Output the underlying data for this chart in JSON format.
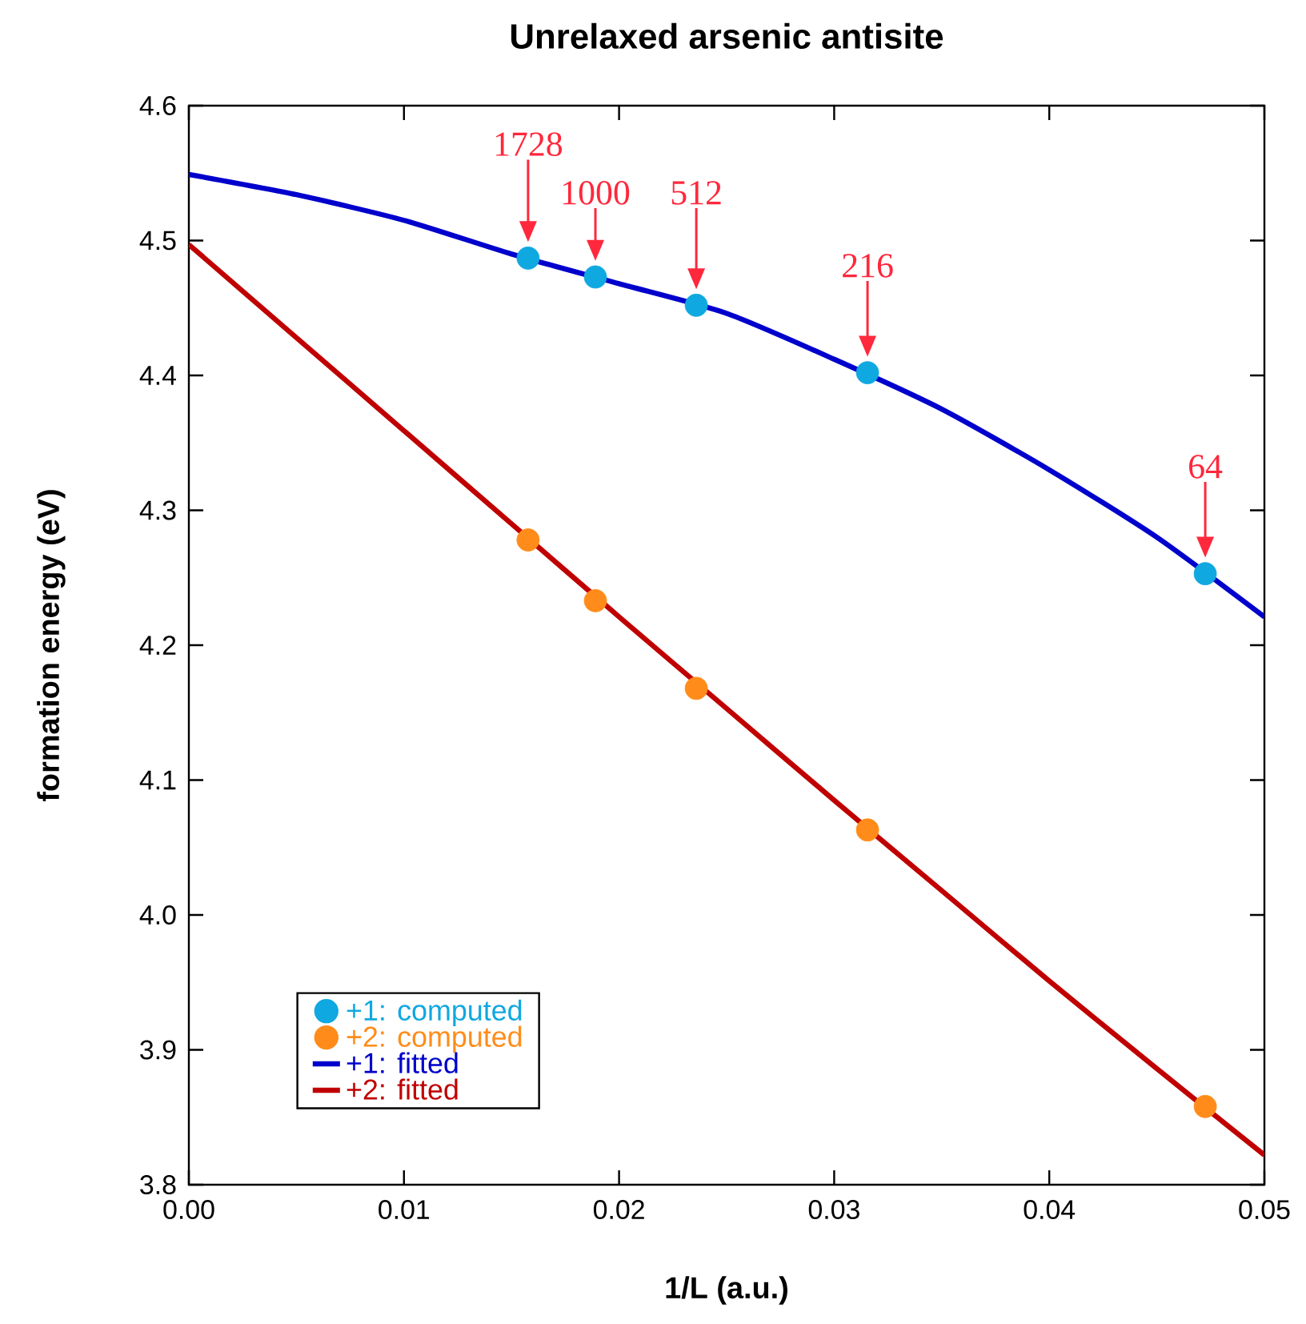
{
  "chart_data": {
    "type": "line",
    "title": "Unrelaxed arsenic antisite",
    "xlabel": "1/L (a.u.)",
    "ylabel": "formation energy (eV)",
    "xlim": [
      0,
      0.05
    ],
    "ylim": [
      3.8,
      4.6
    ],
    "xticks": [
      {
        "value": 0,
        "label": "0.00"
      },
      {
        "value": 0.01,
        "label": "0.01"
      },
      {
        "value": 0.02,
        "label": "0.02"
      },
      {
        "value": 0.03,
        "label": "0.03"
      },
      {
        "value": 0.04,
        "label": "0.04"
      },
      {
        "value": 0.05,
        "label": "0.05"
      }
    ],
    "yticks": [
      3.8,
      3.9,
      {
        "value": 4.0,
        "label": "4.0"
      },
      4.1,
      4.2,
      4.3,
      4.4,
      4.5,
      4.6
    ],
    "series": [
      {
        "name": "+1: computed",
        "type": "scatter",
        "marker": "circle",
        "color": "#10a8e0",
        "x": [
          0.01577,
          0.0189,
          0.02359,
          0.03155,
          0.04725
        ],
        "values": [
          4.487,
          4.473,
          4.452,
          4.402,
          4.253
        ]
      },
      {
        "name": "+2: computed",
        "type": "scatter",
        "marker": "circle",
        "color": "#ff8c1a",
        "x": [
          0.01577,
          0.0189,
          0.02359,
          0.03155,
          0.04725
        ],
        "values": [
          4.278,
          4.233,
          4.168,
          4.063,
          3.858
        ]
      },
      {
        "name": "+1: fitted",
        "color": "#0000cc",
        "x": [
          0,
          0.005,
          0.01,
          0.015,
          0.02,
          0.025,
          0.03,
          0.035,
          0.04,
          0.045,
          0.05
        ],
        "values": [
          4.549,
          4.534,
          4.515,
          4.49,
          4.468,
          4.446,
          4.412,
          4.375,
          4.33,
          4.28,
          4.221
        ]
      },
      {
        "name": "+2: fitted",
        "color": "#c00000",
        "x": [
          0,
          0.005,
          0.01,
          0.015,
          0.02,
          0.025,
          0.03,
          0.035,
          0.04,
          0.045,
          0.05
        ],
        "values": [
          4.497,
          4.428,
          4.359,
          4.29,
          4.221,
          4.153,
          4.085,
          4.018,
          3.951,
          3.886,
          3.822
        ]
      }
    ],
    "annotations": [
      {
        "text": "1728",
        "x": 0.01577,
        "y": 4.487
      },
      {
        "text": "1000",
        "x": 0.0189,
        "y": 4.473
      },
      {
        "text": "512",
        "x": 0.02359,
        "y": 4.452
      },
      {
        "text": "216",
        "x": 0.03155,
        "y": 4.402
      },
      {
        "text": "64",
        "x": 0.04725,
        "y": 4.253
      }
    ],
    "line_style": "solid",
    "legend": "bottom left",
    "grid": false
  }
}
